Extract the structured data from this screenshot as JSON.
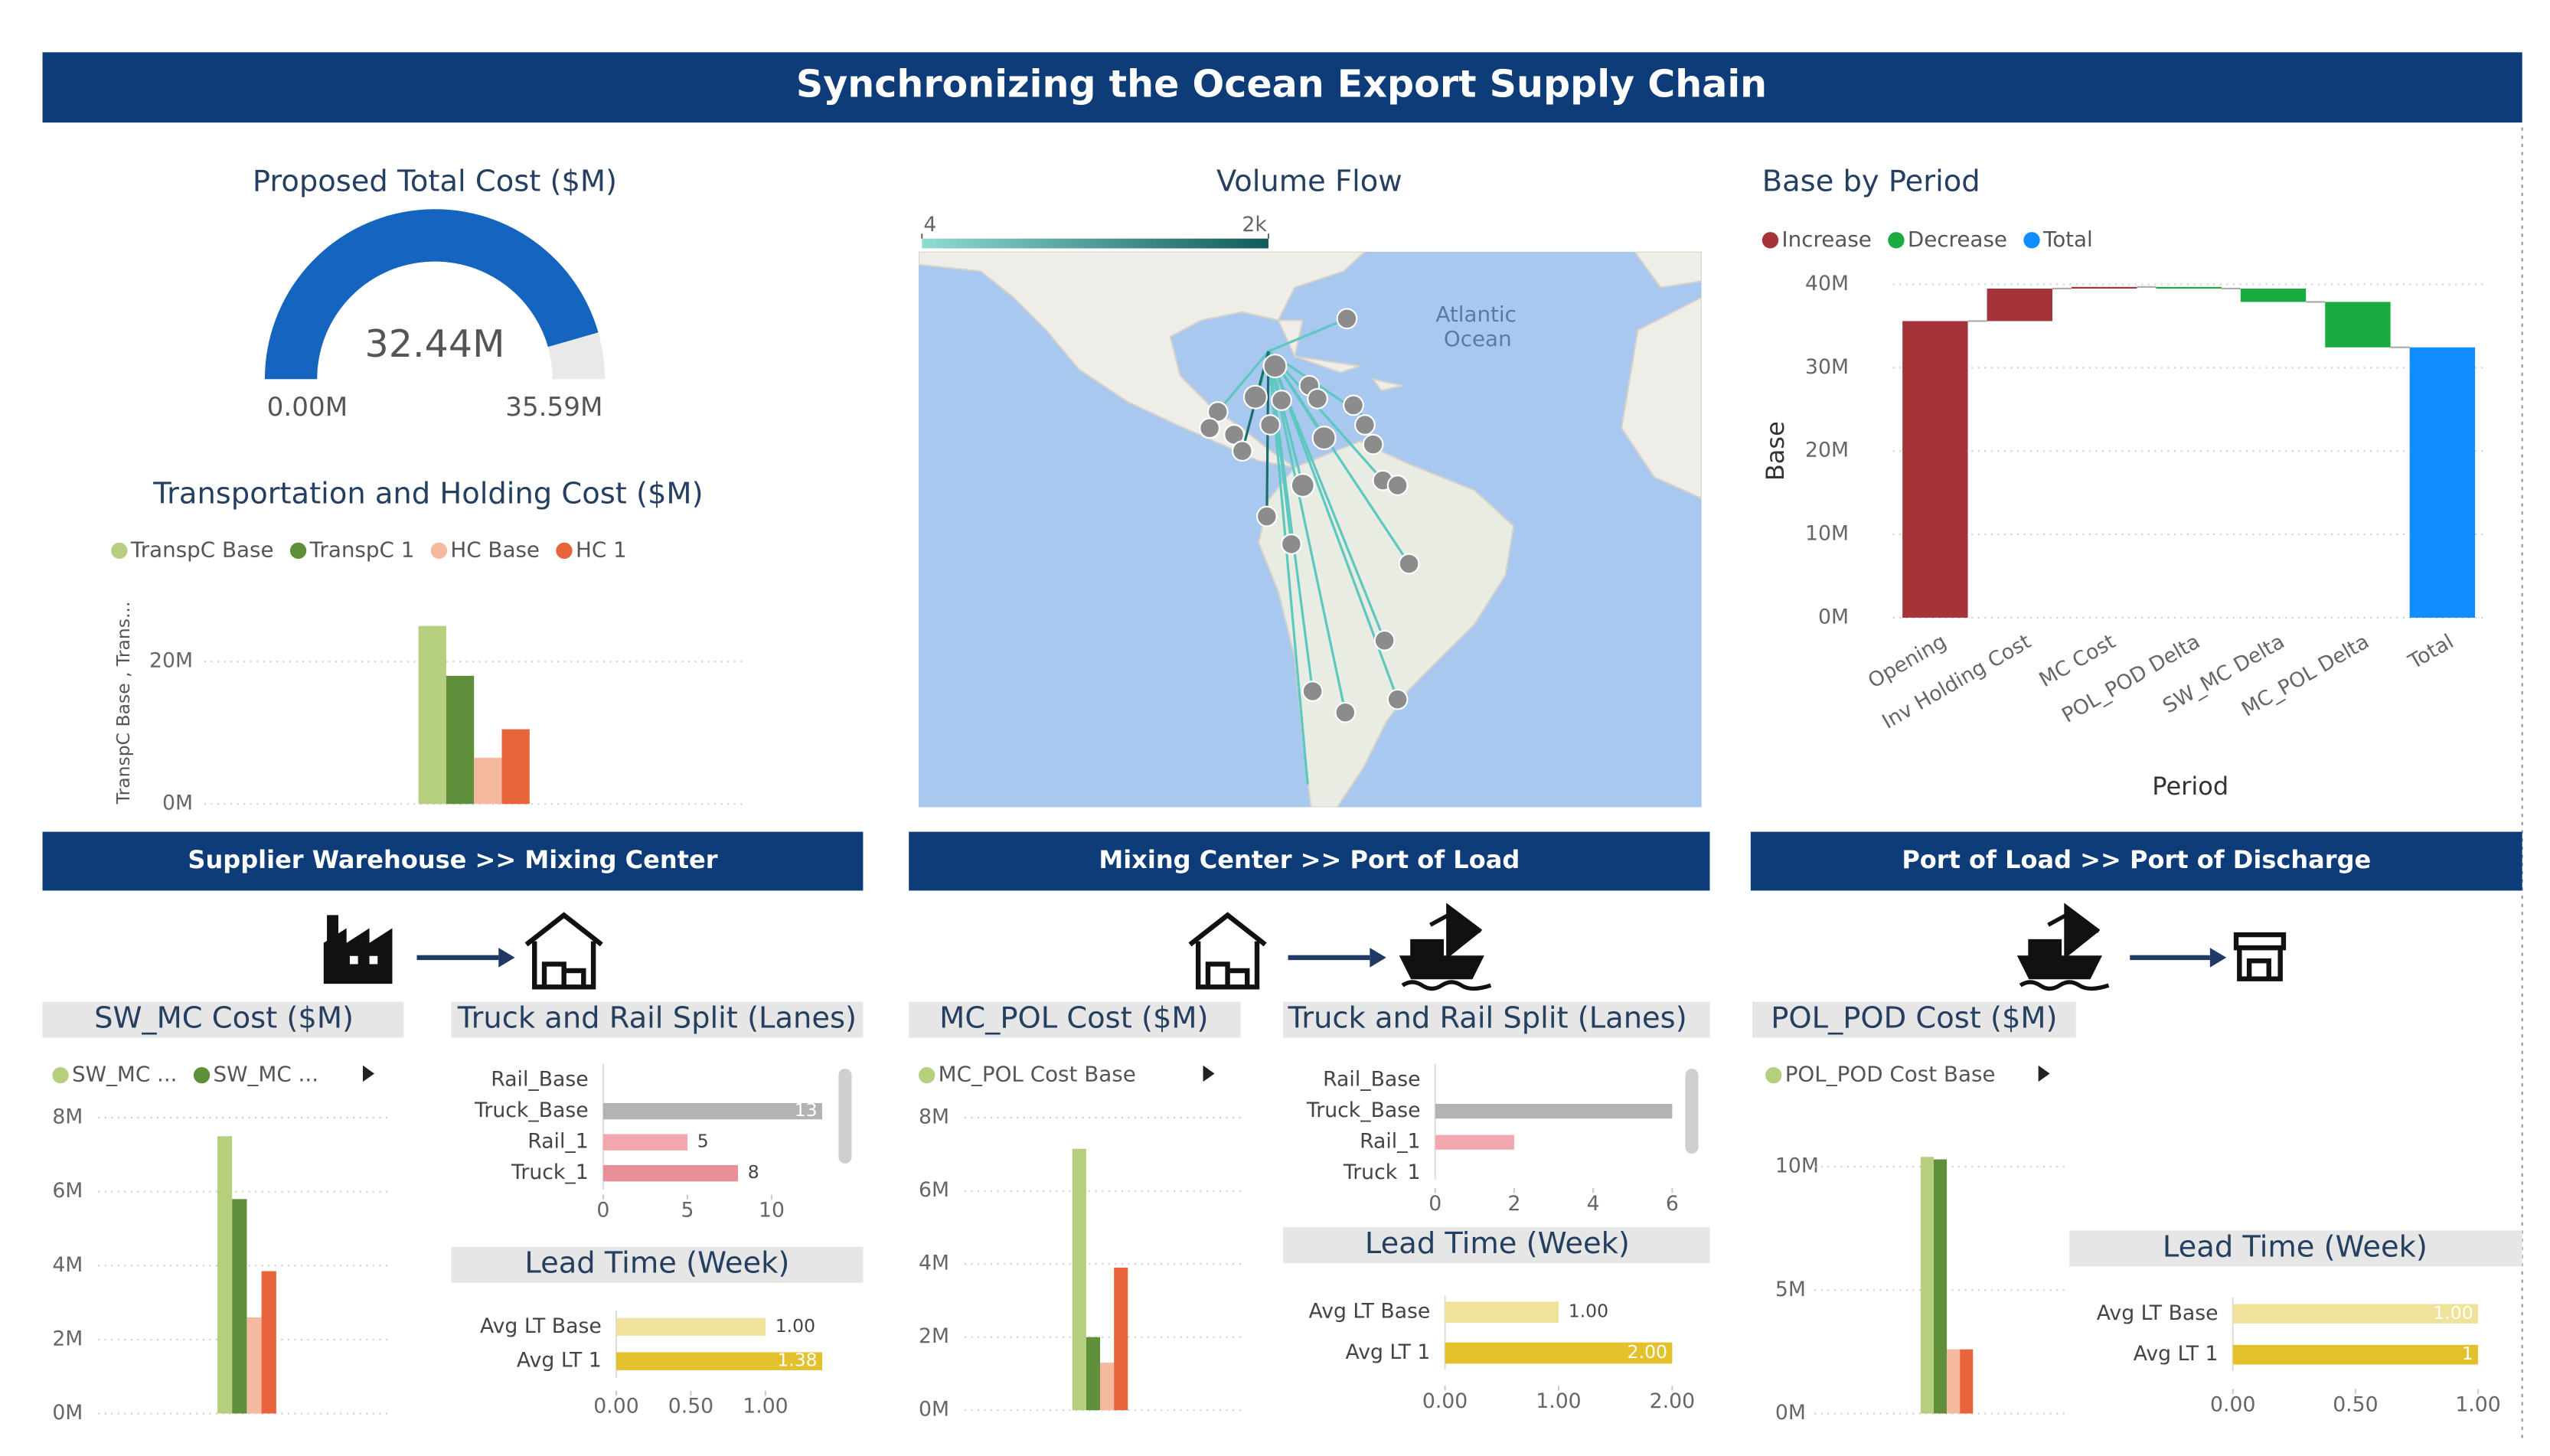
{
  "title": "Synchronizing the Ocean Export Supply Chain",
  "sections": [
    "Supplier Warehouse >> Mixing Center",
    "Mixing Center >> Port of Load",
    "Port of Load >> Port of Discharge"
  ],
  "chart_data": [
    {
      "type": "gauge",
      "title": "Proposed Total Cost ($M)",
      "value": 32.44,
      "value_label": "32.44M",
      "min": 0,
      "min_label": "0.00M",
      "max": 35.59,
      "max_label": "35.59M",
      "color": "#1565c0",
      "track_color": "#e9e9e9"
    },
    {
      "type": "bar",
      "title": "Transportation and Holding Cost ($M)",
      "y_label": "TranspC Base , Trans...",
      "categories": [
        null
      ],
      "series": [
        {
          "name": "TranspC Base",
          "color": "#b5cf7f",
          "values": [
            25
          ]
        },
        {
          "name": "TranspC 1",
          "color": "#5f8f3a",
          "values": [
            18
          ]
        },
        {
          "name": "HC Base",
          "color": "#f5b9a0",
          "values": [
            6.5
          ]
        },
        {
          "name": "HC 1",
          "color": "#e8643a",
          "values": [
            10.5
          ]
        }
      ],
      "ylim": [
        0,
        28
      ],
      "yticks": [
        {
          "value": 0,
          "label": "0M"
        },
        {
          "value": 20,
          "label": "20M"
        }
      ],
      "grid": true
    },
    {
      "type": "map",
      "title": "Volume Flow",
      "scale_ticks": [
        4,
        {
          "value": 2000,
          "label": "2k"
        }
      ],
      "scale_colors": [
        "#8fdcd2",
        "#0f5c5a"
      ],
      "labels": [
        "Atlantic",
        "Ocean"
      ]
    },
    {
      "type": "waterfall",
      "title": "Base by Period",
      "x_label": "Period",
      "y_label": "Base",
      "categories": [
        "Opening",
        "Inv Holding Cost",
        "MC Cost",
        "POL_POD Delta",
        "SW_MC Delta",
        "MC_POL Delta",
        "Total"
      ],
      "values": [
        35.59,
        3.9,
        0.2,
        -0.2,
        -1.6,
        -5.45,
        32.44
      ],
      "kinds": [
        "Increase",
        "Increase",
        "Increase",
        "Decrease",
        "Decrease",
        "Decrease",
        "Total"
      ],
      "legend": [
        {
          "name": "Increase",
          "color": "#a4343a"
        },
        {
          "name": "Decrease",
          "color": "#1aab40"
        },
        {
          "name": "Total",
          "color": "#118dff"
        }
      ],
      "ylim": [
        0,
        40
      ],
      "yticks": [
        {
          "value": 0,
          "label": "0M"
        },
        {
          "value": 10,
          "label": "10M"
        },
        {
          "value": 20,
          "label": "20M"
        },
        {
          "value": 30,
          "label": "30M"
        },
        {
          "value": 40,
          "label": "40M"
        }
      ],
      "grid": true
    },
    {
      "type": "bar",
      "title": "SW_MC Cost ($M)",
      "categories": [
        null
      ],
      "series": [
        {
          "name": "SW_MC ...",
          "color": "#b5cf7f",
          "values": [
            7.5
          ]
        },
        {
          "name": "SW_MC ...",
          "color": "#5f8f3a",
          "values": [
            5.8
          ]
        },
        {
          "color": "#f5b9a0",
          "values": [
            2.6
          ]
        },
        {
          "color": "#e8643a",
          "values": [
            3.85
          ]
        }
      ],
      "ylim": [
        0,
        8
      ],
      "yticks": [
        {
          "value": 0,
          "label": "0M"
        },
        {
          "value": 2,
          "label": "2M"
        },
        {
          "value": 4,
          "label": "4M"
        },
        {
          "value": 6,
          "label": "6M"
        },
        {
          "value": 8,
          "label": "8M"
        }
      ],
      "grid": true
    },
    {
      "type": "bar",
      "horizontal": true,
      "title": "Truck and Rail Split (Lanes)",
      "categories": [
        "Rail_Base",
        "Truck_Base",
        "Rail_1",
        "Truck_1"
      ],
      "values": [
        null,
        13,
        5,
        8
      ],
      "colors": [
        "#b3b3b3",
        "#b3b3b3",
        "#f2a7ae",
        "#e8909a"
      ],
      "show_values": true,
      "xlim": [
        0,
        13
      ],
      "xticks": [
        0,
        5,
        10
      ]
    },
    {
      "type": "bar",
      "horizontal": true,
      "title": "Lead Time (Week)",
      "categories": [
        "Avg LT Base",
        "Avg LT 1"
      ],
      "values": [
        1,
        1.38
      ],
      "value_labels": [
        "1.00",
        "1.38"
      ],
      "colors": [
        "#efe29a",
        "#e3c12d"
      ],
      "show_values": true,
      "xlim": [
        0,
        1.38
      ],
      "xticks": [
        {
          "value": 0,
          "label": "0.00"
        },
        {
          "value": 0.5,
          "label": "0.50"
        },
        {
          "value": 1,
          "label": "1.00"
        }
      ]
    },
    {
      "type": "bar",
      "title": "MC_POL Cost ($M)",
      "categories": [
        null
      ],
      "series": [
        {
          "name": "MC_POL Cost Base",
          "color": "#b5cf7f",
          "values": [
            7.15
          ]
        },
        {
          "color": "#5f8f3a",
          "values": [
            2
          ]
        },
        {
          "color": "#f5b9a0",
          "values": [
            1.3
          ]
        },
        {
          "color": "#e8643a",
          "values": [
            3.9
          ]
        }
      ],
      "ylim": [
        0,
        8
      ],
      "yticks": [
        {
          "value": 0,
          "label": "0M"
        },
        {
          "value": 2,
          "label": "2M"
        },
        {
          "value": 4,
          "label": "4M"
        },
        {
          "value": 6,
          "label": "6M"
        },
        {
          "value": 8,
          "label": "8M"
        }
      ],
      "grid": true
    },
    {
      "type": "bar",
      "horizontal": true,
      "title": "Truck and Rail Split (Lanes)",
      "categories": [
        "Rail_Base",
        "Truck_Base",
        "Rail_1",
        "Truck_1"
      ],
      "values": [
        null,
        6,
        2,
        null
      ],
      "colors": [
        "#b3b3b3",
        "#b3b3b3",
        "#f2a7ae",
        "#e8909a"
      ],
      "show_values": false,
      "xlim": [
        0,
        6
      ],
      "xticks": [
        0,
        2,
        4,
        6
      ]
    },
    {
      "type": "bar",
      "horizontal": true,
      "title": "Lead Time (Week)",
      "categories": [
        "Avg LT Base",
        "Avg LT 1"
      ],
      "values": [
        1,
        2
      ],
      "value_labels": [
        "1.00",
        "2.00"
      ],
      "colors": [
        "#efe29a",
        "#e3c12d"
      ],
      "show_values": true,
      "xlim": [
        0,
        2
      ],
      "xticks": [
        {
          "value": 0,
          "label": "0.00"
        },
        {
          "value": 1,
          "label": "1.00"
        },
        {
          "value": 2,
          "label": "2.00"
        }
      ]
    },
    {
      "type": "bar",
      "title": "POL_POD Cost ($M)",
      "categories": [
        null
      ],
      "series": [
        {
          "name": "POL_POD Cost Base",
          "color": "#b5cf7f",
          "values": [
            10.4
          ]
        },
        {
          "color": "#5f8f3a",
          "values": [
            10.3
          ]
        },
        {
          "color": "#f5b9a0",
          "values": [
            2.6
          ]
        },
        {
          "color": "#e8643a",
          "values": [
            2.6
          ]
        }
      ],
      "ylim": [
        0,
        10
      ],
      "yticks": [
        {
          "value": 0,
          "label": "0M"
        },
        {
          "value": 5,
          "label": "5M"
        },
        {
          "value": 10,
          "label": "10M"
        }
      ],
      "grid": true
    },
    {
      "type": "bar",
      "horizontal": true,
      "title": "Lead Time (Week)",
      "categories": [
        "Avg LT Base",
        "Avg LT 1"
      ],
      "values": [
        1,
        1
      ],
      "value_labels": [
        "1.00",
        "1"
      ],
      "colors": [
        "#efe29a",
        "#e3c12d"
      ],
      "show_values": true,
      "xlim": [
        0,
        1
      ],
      "xticks": [
        {
          "value": 0,
          "label": "0.00"
        },
        {
          "value": 0.5,
          "label": "0.50"
        },
        {
          "value": 1,
          "label": "1.00"
        }
      ]
    }
  ]
}
